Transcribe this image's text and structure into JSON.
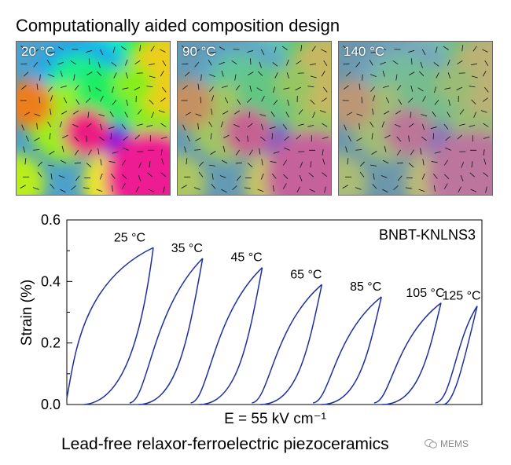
{
  "header": {
    "title": "Computationally aided composition design"
  },
  "panels": [
    {
      "temperature": "20 °C",
      "saturation": 1.0
    },
    {
      "temperature": "90 °C",
      "saturation": 0.55
    },
    {
      "temperature": "140 °C",
      "saturation": 0.4
    }
  ],
  "chart_data": {
    "type": "line",
    "title": "BNBT-KNLNS3",
    "ylabel": "Strain (%)",
    "xlabel": "E = 55 kV cm⁻¹",
    "ylim": [
      0.0,
      0.6
    ],
    "yticks": [
      "0.0",
      "0.2",
      "0.4",
      "0.6"
    ],
    "color": "#1f2fa0",
    "series": [
      {
        "name": "25 °C",
        "peak": 0.51
      },
      {
        "name": "35 °C",
        "peak": 0.475
      },
      {
        "name": "45 °C",
        "peak": 0.445
      },
      {
        "name": "65 °C",
        "peak": 0.39
      },
      {
        "name": "85 °C",
        "peak": 0.35
      },
      {
        "name": "105 °C",
        "peak": 0.33
      },
      {
        "name": "125 °C",
        "peak": 0.32
      }
    ]
  },
  "caption": "Lead-free relaxor-ferroelectric piezoceramics",
  "watermark": "MEMS"
}
